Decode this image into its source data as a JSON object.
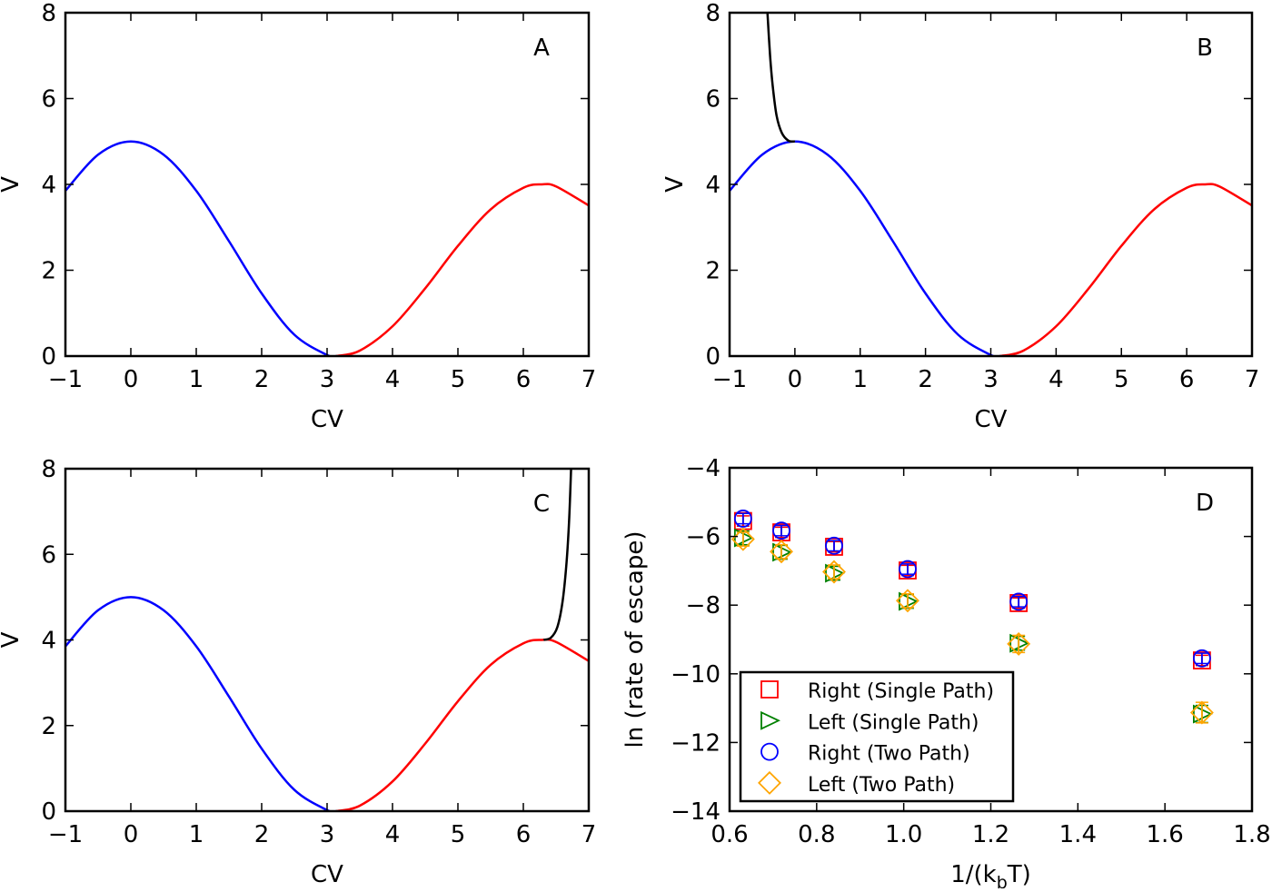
{
  "chart_data": [
    {
      "type": "line",
      "panel_label": "A",
      "xlabel": "CV",
      "ylabel": "V",
      "xlim": [
        -1,
        7
      ],
      "ylim": [
        0,
        8
      ],
      "xticks": [
        -1,
        0,
        1,
        2,
        3,
        4,
        5,
        6,
        7
      ],
      "yticks": [
        0,
        2,
        4,
        6,
        8
      ],
      "grid": false,
      "series": [
        {
          "color": "#0000ff",
          "x": [
            -1,
            -0.5,
            0,
            0.5,
            1,
            1.5,
            2,
            2.5,
            3,
            3.1416
          ],
          "y": [
            3.851,
            4.694,
            5,
            4.694,
            3.851,
            2.677,
            1.46,
            0.497,
            0.025,
            0
          ]
        },
        {
          "color": "#ff0000",
          "x": [
            3.1416,
            3.5,
            4,
            4.5,
            5,
            5.5,
            6,
            6.2832,
            6.5,
            7
          ],
          "y": [
            0,
            0.127,
            0.693,
            1.578,
            2.567,
            3.417,
            3.92,
            4,
            3.953,
            3.508
          ]
        }
      ]
    },
    {
      "type": "line",
      "panel_label": "B",
      "xlabel": "CV",
      "ylabel": "V",
      "xlim": [
        -1,
        7
      ],
      "ylim": [
        0,
        8
      ],
      "xticks": [
        -1,
        0,
        1,
        2,
        3,
        4,
        5,
        6,
        7
      ],
      "yticks": [
        0,
        2,
        4,
        6,
        8
      ],
      "grid": false,
      "series": [
        {
          "color": "#0000ff",
          "x": [
            -1,
            -0.5,
            0,
            0.5,
            1,
            1.5,
            2,
            2.5,
            3,
            3.1416
          ],
          "y": [
            3.851,
            4.694,
            5,
            4.694,
            3.851,
            2.677,
            1.46,
            0.497,
            0.025,
            0
          ]
        },
        {
          "color": "#ff0000",
          "x": [
            3.1416,
            3.5,
            4,
            4.5,
            5,
            5.5,
            6,
            6.2832,
            6.5,
            7
          ],
          "y": [
            0,
            0.127,
            0.693,
            1.578,
            2.567,
            3.417,
            3.92,
            4,
            3.953,
            3.508
          ]
        },
        {
          "color": "#000000",
          "x": [
            0,
            -0.1,
            -0.2,
            -0.28,
            -0.34,
            -0.38,
            -0.42
          ],
          "y": [
            5,
            5.02,
            5.2,
            5.6,
            6.3,
            7.0,
            8
          ]
        }
      ]
    },
    {
      "type": "line",
      "panel_label": "C",
      "xlabel": "CV",
      "ylabel": "V",
      "xlim": [
        -1,
        7
      ],
      "ylim": [
        0,
        8
      ],
      "xticks": [
        -1,
        0,
        1,
        2,
        3,
        4,
        5,
        6,
        7
      ],
      "yticks": [
        0,
        2,
        4,
        6,
        8
      ],
      "grid": false,
      "series": [
        {
          "color": "#0000ff",
          "x": [
            -1,
            -0.5,
            0,
            0.5,
            1,
            1.5,
            2,
            2.5,
            3,
            3.1416
          ],
          "y": [
            3.851,
            4.694,
            5,
            4.694,
            3.851,
            2.677,
            1.46,
            0.497,
            0.025,
            0
          ]
        },
        {
          "color": "#ff0000",
          "x": [
            3.1416,
            3.5,
            4,
            4.5,
            5,
            5.5,
            6,
            6.2832,
            6.5,
            7
          ],
          "y": [
            0,
            0.127,
            0.693,
            1.578,
            2.567,
            3.417,
            3.92,
            4,
            3.953,
            3.508
          ]
        },
        {
          "color": "#000000",
          "x": [
            6.31,
            6.42,
            6.52,
            6.6,
            6.66,
            6.7,
            6.73
          ],
          "y": [
            4,
            4.05,
            4.3,
            4.9,
            5.8,
            6.8,
            8
          ]
        }
      ]
    },
    {
      "type": "scatter",
      "panel_label": "D",
      "xlabel": "1/(k",
      "xlabel_sub": "b",
      "xlabel_end": "T)",
      "ylabel": "ln (rate of escape)",
      "xlim": [
        0.6,
        1.8
      ],
      "ylim": [
        -14,
        -4
      ],
      "xticks": [
        0.6,
        0.8,
        1.0,
        1.2,
        1.4,
        1.6,
        1.8
      ],
      "xtick_labels": [
        "0.6",
        "0.8",
        "1.0",
        "1.2",
        "1.4",
        "1.6",
        "1.8"
      ],
      "yticks": [
        -14,
        -12,
        -10,
        -8,
        -6,
        -4
      ],
      "ytick_labels": [
        "−14",
        "−12",
        "−10",
        "−8",
        "−6",
        "−4"
      ],
      "grid": false,
      "legend_placement": "lower-left",
      "series": [
        {
          "name": "Right (Single Path)",
          "marker": "square",
          "color": "#ff0000",
          "x": [
            0.631,
            0.719,
            0.84,
            1.009,
            1.264,
            1.685
          ],
          "y": [
            -5.55,
            -5.88,
            -6.3,
            -6.99,
            -7.94,
            -9.61
          ],
          "yerr": [
            0.15,
            0.15,
            0.15,
            0.15,
            0.15,
            0.15
          ]
        },
        {
          "name": "Left (Single Path)",
          "marker": "triangle-right",
          "color": "#008000",
          "x": [
            0.631,
            0.719,
            0.84,
            1.009,
            1.264,
            1.685
          ],
          "y": [
            -6.04,
            -6.46,
            -7.07,
            -7.89,
            -9.11,
            -11.17
          ],
          "yerr": [
            0.2,
            0.2,
            0.2,
            0.2,
            0.2,
            0.25
          ]
        },
        {
          "name": "Right (Two Path)",
          "marker": "circle",
          "color": "#0000ff",
          "x": [
            0.631,
            0.719,
            0.84,
            1.009,
            1.264,
            1.685
          ],
          "y": [
            -5.48,
            -5.83,
            -6.27,
            -6.95,
            -7.9,
            -9.55
          ],
          "yerr": [
            0.15,
            0.15,
            0.15,
            0.15,
            0.15,
            0.15
          ]
        },
        {
          "name": "Left (Two Path)",
          "marker": "diamond",
          "color": "#ffa500",
          "x": [
            0.631,
            0.719,
            0.84,
            1.009,
            1.264,
            1.685
          ],
          "y": [
            -6.08,
            -6.44,
            -7.03,
            -7.87,
            -9.13,
            -11.13
          ],
          "yerr": [
            0.2,
            0.2,
            0.2,
            0.2,
            0.25,
            0.3
          ]
        }
      ]
    }
  ]
}
